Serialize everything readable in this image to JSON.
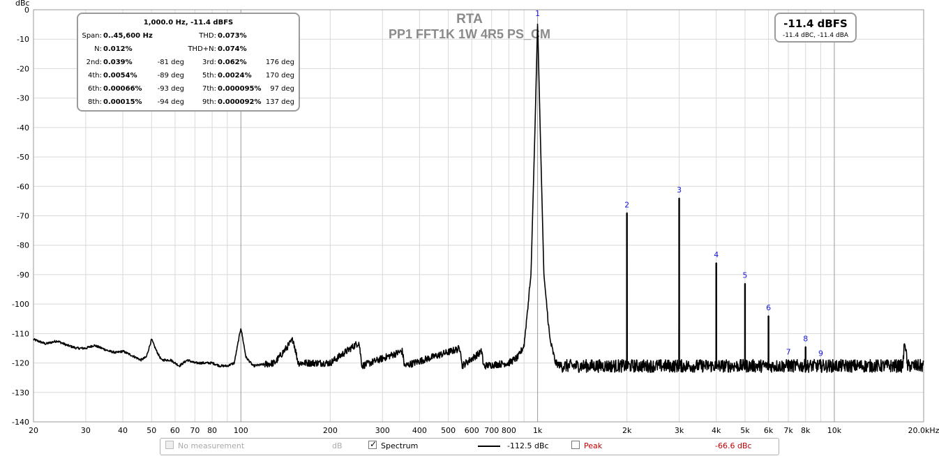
{
  "chart_data": {
    "type": "line",
    "title": "RTA",
    "subtitle": "PP1 FFT1K 1W 4R5 PS_CM",
    "ylabel": "dBc",
    "xlabel": "",
    "x_scale": "log",
    "xlim": [
      20,
      20000
    ],
    "ylim": [
      -140,
      0
    ],
    "grid": true,
    "x_ticks": [
      {
        "v": 20,
        "label": "20"
      },
      {
        "v": 30,
        "label": "30"
      },
      {
        "v": 40,
        "label": "40"
      },
      {
        "v": 50,
        "label": "50"
      },
      {
        "v": 60,
        "label": "60"
      },
      {
        "v": 70,
        "label": "70"
      },
      {
        "v": 80,
        "label": "80"
      },
      {
        "v": 100,
        "label": "100"
      },
      {
        "v": 200,
        "label": "200"
      },
      {
        "v": 300,
        "label": "300"
      },
      {
        "v": 400,
        "label": "400"
      },
      {
        "v": 500,
        "label": "500"
      },
      {
        "v": 600,
        "label": "600"
      },
      {
        "v": 700,
        "label": "700"
      },
      {
        "v": 800,
        "label": "800"
      },
      {
        "v": 1000,
        "label": "1k"
      },
      {
        "v": 2000,
        "label": "2k"
      },
      {
        "v": 3000,
        "label": "3k"
      },
      {
        "v": 4000,
        "label": "4k"
      },
      {
        "v": 5000,
        "label": "5k"
      },
      {
        "v": 6000,
        "label": "6k"
      },
      {
        "v": 7000,
        "label": "7k"
      },
      {
        "v": 8000,
        "label": "8k"
      },
      {
        "v": 10000,
        "label": "10k"
      },
      {
        "v": 20000,
        "label": "20.0kHz"
      }
    ],
    "y_ticks": [
      0,
      -10,
      -20,
      -30,
      -40,
      -50,
      -60,
      -70,
      -80,
      -90,
      -100,
      -110,
      -120,
      -130,
      -140
    ],
    "y_tick_labels": [
      "0",
      "-10",
      "-20",
      "-30",
      "-40",
      "-50",
      "-60",
      "-70",
      "-80",
      "-90",
      "-100",
      "-110",
      "-120",
      "-130",
      "-140"
    ],
    "series": [
      {
        "name": "Spectrum",
        "color": "#000000",
        "noise_floor": -121,
        "baseline_points": [
          [
            20,
            -112
          ],
          [
            22,
            -113.5
          ],
          [
            24,
            -112.5
          ],
          [
            26,
            -114
          ],
          [
            28,
            -115
          ],
          [
            30,
            -115
          ],
          [
            32,
            -114
          ],
          [
            34,
            -115
          ],
          [
            36,
            -116
          ],
          [
            38,
            -116.5
          ],
          [
            40,
            -116
          ],
          [
            42,
            -117
          ],
          [
            44,
            -118
          ],
          [
            46,
            -119
          ],
          [
            48,
            -118
          ],
          [
            50,
            -112
          ],
          [
            52,
            -116
          ],
          [
            54,
            -119
          ],
          [
            58,
            -119
          ],
          [
            62,
            -121
          ],
          [
            66,
            -119
          ],
          [
            70,
            -120
          ],
          [
            75,
            -120
          ],
          [
            80,
            -120
          ],
          [
            85,
            -121
          ],
          [
            90,
            -121
          ],
          [
            95,
            -120
          ],
          [
            100,
            -108
          ],
          [
            104,
            -118
          ],
          [
            110,
            -121
          ],
          [
            130,
            -120
          ],
          [
            150,
            -112
          ],
          [
            156,
            -120
          ],
          [
            200,
            -120
          ],
          [
            250,
            -113
          ],
          [
            256,
            -121
          ],
          [
            350,
            -116
          ],
          [
            356,
            -121
          ],
          [
            550,
            -115
          ],
          [
            556,
            -121
          ],
          [
            650,
            -116
          ],
          [
            656,
            -121
          ],
          [
            800,
            -120
          ],
          [
            860,
            -118
          ],
          [
            900,
            -114
          ],
          [
            950,
            -90
          ],
          [
            980,
            -40
          ],
          [
            1000,
            -4
          ],
          [
            1020,
            -40
          ],
          [
            1050,
            -90
          ],
          [
            1100,
            -112
          ],
          [
            1150,
            -120
          ],
          [
            1200,
            -121
          ],
          [
            17000,
            -121
          ],
          [
            17300,
            -112
          ],
          [
            17600,
            -121
          ],
          [
            20000,
            -121
          ]
        ],
        "spikes": [
          {
            "x": 2000,
            "y": -69
          },
          {
            "x": 3000,
            "y": -64
          },
          {
            "x": 4000,
            "y": -86
          },
          {
            "x": 5000,
            "y": -93
          },
          {
            "x": 6000,
            "y": -104
          },
          {
            "x": 7000,
            "y": -119
          },
          {
            "x": 8000,
            "y": -114.5
          },
          {
            "x": 9000,
            "y": -119.5
          }
        ]
      }
    ],
    "harmonic_labels": [
      {
        "n": "1",
        "x": 1000,
        "y": -4
      },
      {
        "n": "2",
        "x": 2000,
        "y": -69
      },
      {
        "n": "3",
        "x": 3000,
        "y": -64
      },
      {
        "n": "4",
        "x": 4000,
        "y": -86
      },
      {
        "n": "5",
        "x": 5000,
        "y": -93
      },
      {
        "n": "6",
        "x": 6000,
        "y": -104
      },
      {
        "n": "7",
        "x": 7000,
        "y": -119
      },
      {
        "n": "8",
        "x": 8000,
        "y": -114.5
      },
      {
        "n": "9",
        "x": 9000,
        "y": -119.5
      }
    ]
  },
  "info": {
    "header": "1,000.0 Hz, -11.4 dBFS",
    "span_label": "Span:",
    "span_value": "0..45,600 Hz",
    "thd_label": "THD:",
    "thd_value": "0.073%",
    "n_label": "N:",
    "n_value": "0.012%",
    "thdn_label": "THD+N:",
    "thdn_value": "0.074%",
    "harmonics": [
      {
        "label": "2nd:",
        "value": "0.039%",
        "phase": "-81 deg",
        "label2": "3rd:",
        "value2": "0.062%",
        "phase2": "176 deg"
      },
      {
        "label": "4th:",
        "value": "0.0054%",
        "phase": "-89 deg",
        "label2": "5th:",
        "value2": "0.0024%",
        "phase2": "170 deg"
      },
      {
        "label": "6th:",
        "value": "0.00066%",
        "phase": "-93 deg",
        "label2": "7th:",
        "value2": "0.000095%",
        "phase2": "97 deg"
      },
      {
        "label": "8th:",
        "value": "0.00015%",
        "phase": "-94 deg",
        "label2": "9th:",
        "value2": "0.000092%",
        "phase2": "137 deg"
      }
    ]
  },
  "level": {
    "main": "-11.4 dBFS",
    "sub": "-11.4 dBC, -11.4 dBA"
  },
  "legend": {
    "no_measurement": "No measurement",
    "no_measurement_unit": "dB",
    "spectrum": "Spectrum",
    "spectrum_value": "-112.5 dBc",
    "spectrum_checked": true,
    "peak": "Peak",
    "peak_value": "-66.6 dBc",
    "peak_color": "#c00000"
  }
}
